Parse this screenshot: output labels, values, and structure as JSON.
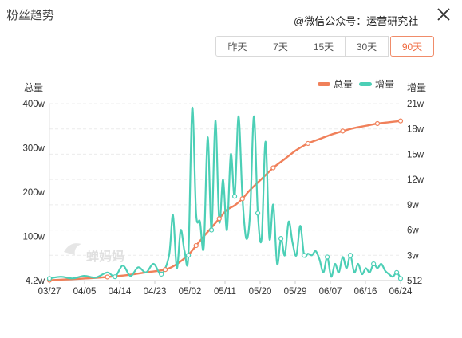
{
  "header": {
    "title": "粉丝趋势",
    "watermark": "@微信公众号：运营研究社"
  },
  "range_buttons": [
    {
      "label": "昨天",
      "active": false
    },
    {
      "label": "7天",
      "active": false
    },
    {
      "label": "15天",
      "active": false
    },
    {
      "label": "30天",
      "active": false
    },
    {
      "label": "90天",
      "active": true
    }
  ],
  "colors": {
    "total": "#f0805a",
    "increase": "#4ccfb6",
    "active": "#f06a3f"
  },
  "logo_text": "蝉妈妈",
  "chart_data": {
    "type": "line",
    "left_axis_label": "总量",
    "right_axis_label": "增量",
    "legend": [
      "总量",
      "增量"
    ],
    "legend_position": "top-right",
    "x_ticks": [
      "03/27",
      "04/05",
      "04/14",
      "04/23",
      "05/02",
      "05/11",
      "05/20",
      "05/29",
      "06/07",
      "06/16",
      "06/24"
    ],
    "left_ticks": [
      "4.2w",
      "100w",
      "200w",
      "300w",
      "400w"
    ],
    "left_tick_values": [
      4.2,
      100,
      200,
      300,
      400
    ],
    "left_ylim": [
      4.2,
      400
    ],
    "right_ticks": [
      "512",
      "3w",
      "6w",
      "9w",
      "12w",
      "15w",
      "18w",
      "21w"
    ],
    "right_tick_values": [
      0.0512,
      3,
      6,
      9,
      12,
      15,
      18,
      21
    ],
    "right_ylim": [
      0.0512,
      21
    ],
    "grid": "horizontal dashed",
    "series": [
      {
        "name": "总量",
        "axis": "left",
        "x": [
          0,
          5,
          10,
          15,
          20,
          25,
          30,
          33,
          36,
          38,
          40,
          42,
          44,
          46,
          48,
          50,
          52,
          55,
          58,
          61,
          64,
          67,
          70,
          73,
          76,
          79,
          82,
          85,
          88,
          91
        ],
        "values": [
          5,
          7,
          9,
          12,
          16,
          22,
          28,
          40,
          60,
          80,
          100,
          120,
          140,
          160,
          170,
          185,
          205,
          230,
          255,
          275,
          295,
          310,
          320,
          330,
          338,
          345,
          350,
          355,
          358,
          361
        ]
      },
      {
        "name": "增量",
        "axis": "right",
        "x": [
          0,
          3,
          6,
          9,
          12,
          15,
          17,
          19,
          21,
          23,
          25,
          27,
          29,
          31,
          32,
          33,
          34,
          35,
          36,
          37,
          38,
          39,
          40,
          41,
          42,
          43,
          44,
          45,
          46,
          47,
          48,
          49,
          50,
          51,
          52,
          53,
          54,
          55,
          56,
          57,
          58,
          59,
          60,
          61,
          62,
          63,
          64,
          65,
          66,
          67,
          68,
          69,
          70,
          71,
          72,
          73,
          74,
          75,
          76,
          77,
          78,
          79,
          80,
          81,
          82,
          83,
          84,
          85,
          86,
          87,
          88,
          89,
          90,
          91
        ],
        "values": [
          0.3,
          0.5,
          0.3,
          0.6,
          0.4,
          1.0,
          0.5,
          1.8,
          0.6,
          1.6,
          1.0,
          2.0,
          0.8,
          3.0,
          7.8,
          1.5,
          6.0,
          3.5,
          3.0,
          20.5,
          8.0,
          7.0,
          4.0,
          17.0,
          6.0,
          19.0,
          7.0,
          12.0,
          6.0,
          15.0,
          10.0,
          19.5,
          10.0,
          5.0,
          8.0,
          19.5,
          8.0,
          5.0,
          16.5,
          5.0,
          9.0,
          2.0,
          5.0,
          3.0,
          7.0,
          4.5,
          3.0,
          6.5,
          3.0,
          3.2,
          3.0,
          3.5,
          2.5,
          1.0,
          2.8,
          0.5,
          2.0,
          1.0,
          2.8,
          1.5,
          3.0,
          1.0,
          2.0,
          0.8,
          1.5,
          1.0,
          2.0,
          1.5,
          2.0,
          1.2,
          0.8,
          0.5,
          1.0,
          0.3
        ]
      }
    ]
  }
}
